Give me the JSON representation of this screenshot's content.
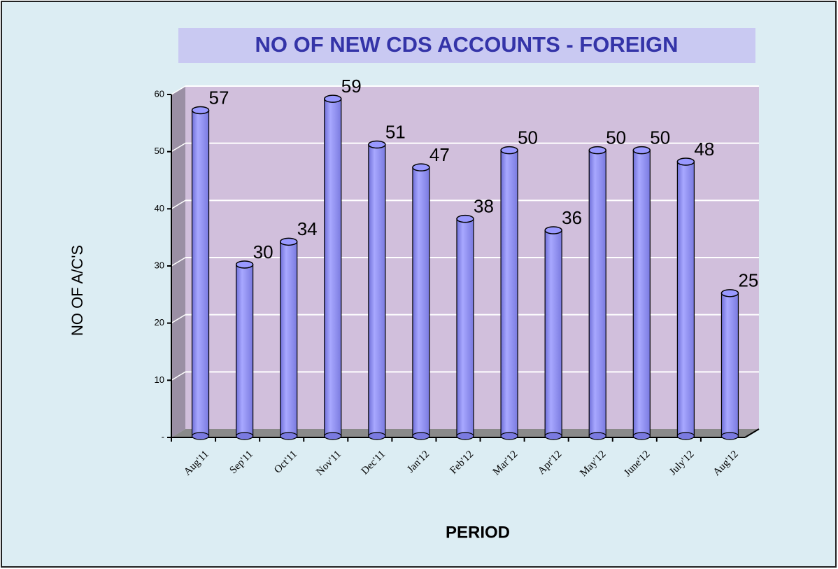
{
  "chart_data": {
    "type": "bar",
    "title": "NO OF NEW CDS ACCOUNTS - FOREIGN",
    "x_axis_label": "PERIOD",
    "y_axis_label": "NO OF A/C'S",
    "categories": [
      "Aug'11",
      "Sep'11",
      "Oct'11",
      "Nov'11",
      "Dec'11",
      "Jan'12",
      "Feb'12",
      "Mar'12",
      "Apr'12",
      "May'12",
      "June'12",
      "July'12",
      "Aug'12"
    ],
    "values": [
      57,
      30,
      34,
      59,
      51,
      47,
      38,
      50,
      36,
      50,
      50,
      48,
      25
    ],
    "color": "#9999ff",
    "ylim": [
      0,
      60
    ],
    "yticks": [
      {
        "value": 0,
        "label": "-"
      },
      10,
      20,
      30,
      40,
      50,
      60
    ],
    "grid": true
  }
}
